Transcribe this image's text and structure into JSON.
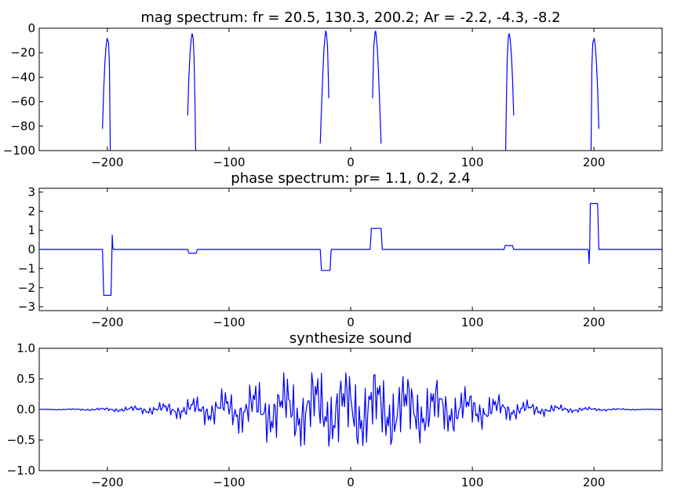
{
  "chart_data": [
    {
      "type": "line",
      "title": "mag spectrum: fr = 20.5, 130.3, 200.2; Ar = -2.2, -4.3, -8.2",
      "xlim": [
        -256,
        256
      ],
      "ylim": [
        -100,
        0
      ],
      "xticks": [
        -200,
        -100,
        0,
        100,
        200
      ],
      "xtick_labels": [
        "−200",
        "−100",
        "0",
        "100",
        "200"
      ],
      "yticks": [
        0,
        -20,
        -40,
        -60,
        -80,
        -100
      ],
      "ytick_labels": [
        "0",
        "−20",
        "−40",
        "−60",
        "−80",
        "−100"
      ],
      "grid": false,
      "series": [
        {
          "color": "#0000ff",
          "x": [
            -204,
            -203,
            -202,
            -201,
            -200.2,
            -199,
            -198.3,
            -198,
            -197.6
          ],
          "y": [
            -82,
            -50,
            -28,
            -14,
            -8.2,
            -12,
            -30,
            -60,
            -100
          ]
        },
        {
          "color": "#0000ff",
          "x": [
            -134,
            -133,
            -132,
            -131,
            -130.3,
            -129.5,
            -128.7,
            -128,
            -127.4
          ],
          "y": [
            -71,
            -40,
            -20,
            -8,
            -4.3,
            -8,
            -25,
            -60,
            -100
          ]
        },
        {
          "color": "#0000ff",
          "x": [
            -25,
            -24,
            -23,
            -22,
            -21,
            -20.5,
            -20,
            -19,
            -18.5,
            -18
          ],
          "y": [
            -94,
            -65,
            -40,
            -18,
            -6,
            -2.2,
            -4,
            -15,
            -35,
            -57
          ]
        },
        {
          "color": "#0000ff",
          "x": [
            18,
            18.5,
            19,
            20,
            20.5,
            21,
            22,
            23,
            24,
            25
          ],
          "y": [
            -57,
            -35,
            -15,
            -4,
            -2.2,
            -6,
            -18,
            -40,
            -65,
            -94
          ]
        },
        {
          "color": "#0000ff",
          "x": [
            127.4,
            128,
            128.7,
            129.5,
            130.3,
            131,
            132,
            133,
            134
          ],
          "y": [
            -100,
            -60,
            -25,
            -8,
            -4.3,
            -8,
            -20,
            -40,
            -71
          ]
        },
        {
          "color": "#0000ff",
          "x": [
            197.6,
            198,
            198.3,
            199,
            200.2,
            201,
            202,
            203,
            204
          ],
          "y": [
            -100,
            -60,
            -30,
            -12,
            -8.2,
            -14,
            -28,
            -50,
            -82
          ]
        }
      ]
    },
    {
      "type": "line",
      "title": "phase spectrum: pr= 1.1, 0.2, 2.4",
      "xlim": [
        -256,
        256
      ],
      "ylim": [
        -3.2,
        3.2
      ],
      "xticks": [
        -200,
        -100,
        0,
        100,
        200
      ],
      "xtick_labels": [
        "−200",
        "−100",
        "0",
        "100",
        "200"
      ],
      "yticks": [
        3,
        2,
        1,
        0,
        -1,
        -2,
        -3
      ],
      "ytick_labels": [
        "3",
        "2",
        "1",
        "0",
        "−1",
        "−2",
        "−3"
      ],
      "grid": false,
      "series": [
        {
          "color": "#0000ff",
          "x": [
            -256,
            -204,
            -203,
            -197,
            -196.5,
            -196,
            -195.5,
            -195,
            -134,
            -133,
            -127,
            -126,
            -25,
            -24,
            -17,
            -16,
            16,
            17,
            25,
            26,
            126,
            127,
            133,
            134,
            195,
            195.5,
            196,
            196.5,
            197,
            203,
            204,
            256
          ],
          "y": [
            0,
            0,
            -2.4,
            -2.4,
            -1.0,
            0.75,
            0.1,
            0,
            0,
            -0.2,
            -0.2,
            0,
            0,
            -1.1,
            -1.1,
            0,
            0,
            1.1,
            1.1,
            0,
            0,
            0.2,
            0.2,
            0,
            0,
            -0.1,
            -0.75,
            0.1,
            2.4,
            2.4,
            0,
            0
          ]
        }
      ]
    },
    {
      "type": "line",
      "title": "synthesize sound",
      "xlim": [
        -256,
        256
      ],
      "ylim": [
        -1,
        1
      ],
      "xticks": [
        -200,
        -100,
        0,
        100,
        200
      ],
      "xtick_labels": [
        "−200",
        "−100",
        "0",
        "100",
        "200"
      ],
      "yticks": [
        1.0,
        0.5,
        0.0,
        -0.5,
        -1.0
      ],
      "ytick_labels": [
        "1.0",
        "0.5",
        "0.0",
        "−0.5",
        "−1.0"
      ],
      "grid": false,
      "series": [
        {
          "color": "#0000ff",
          "frequencies": [
            20.5,
            130.3,
            200.2
          ],
          "phases": [
            1.1,
            0.2,
            2.4
          ],
          "peak_amplitude": 0.55,
          "envelope_width": 80,
          "x_range": [
            -256,
            256
          ]
        }
      ]
    }
  ]
}
